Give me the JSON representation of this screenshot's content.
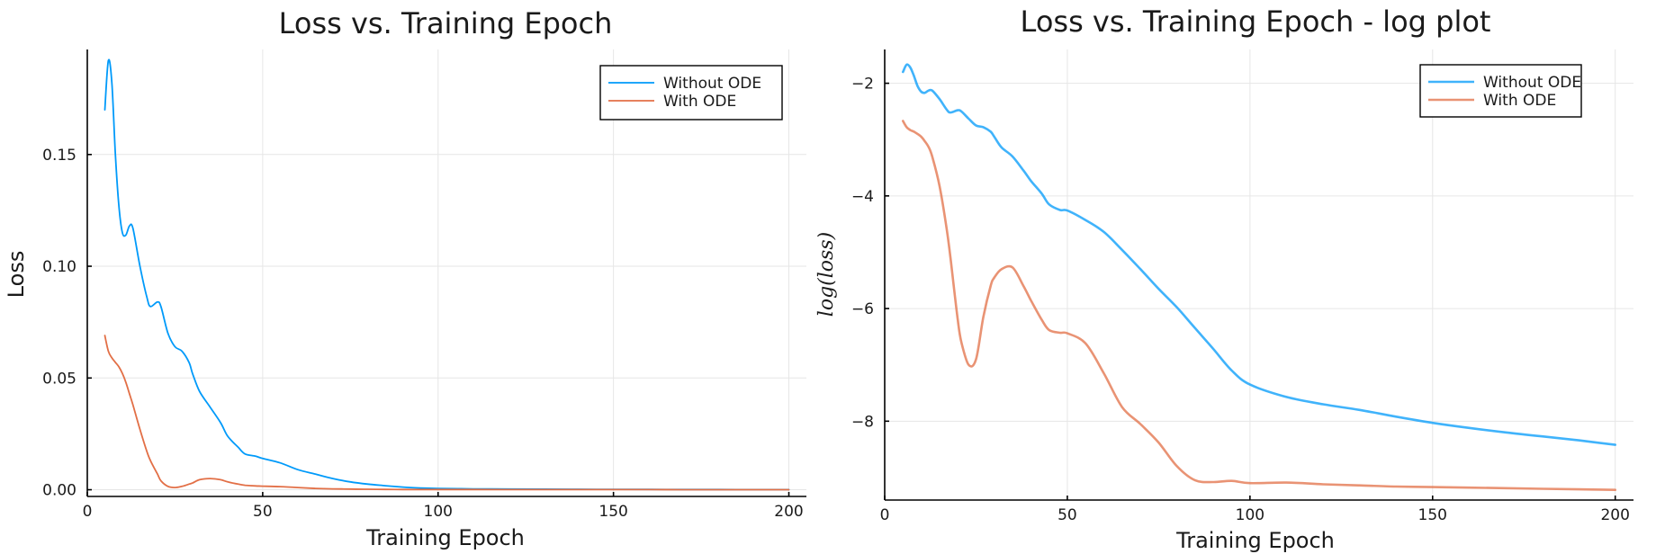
{
  "chart_data": [
    {
      "type": "line",
      "title": "Loss vs. Training Epoch",
      "xlabel": "Training Epoch",
      "ylabel": "Loss",
      "ylabel_style": "plain",
      "xlim": [
        0,
        205
      ],
      "ylim": [
        -0.003,
        0.197
      ],
      "xticks": [
        0,
        50,
        100,
        150,
        200
      ],
      "xtick_labels": [
        "0",
        "50",
        "100",
        "150",
        "200"
      ],
      "yticks": [
        0.0,
        0.05,
        0.1,
        0.15
      ],
      "ytick_labels": [
        "0.00",
        "0.05",
        "0.10",
        "0.15"
      ],
      "grid": true,
      "legend_position": "top-right",
      "x": [
        5,
        6,
        7,
        8,
        9,
        10,
        11,
        12,
        13,
        15,
        17,
        18,
        20,
        21,
        23,
        25,
        27,
        29,
        30,
        32,
        35,
        38,
        40,
        43,
        45,
        48,
        50,
        55,
        60,
        65,
        70,
        75,
        80,
        85,
        90,
        95,
        100,
        110,
        120,
        130,
        140,
        150,
        160,
        170,
        180,
        190,
        200
      ],
      "series": [
        {
          "name": "Without ODE",
          "color": "#009AFA",
          "values": [
            0.17,
            0.192,
            0.182,
            0.15,
            0.127,
            0.115,
            0.114,
            0.118,
            0.117,
            0.1,
            0.086,
            0.082,
            0.084,
            0.082,
            0.07,
            0.064,
            0.062,
            0.057,
            0.052,
            0.044,
            0.037,
            0.03,
            0.024,
            0.019,
            0.016,
            0.015,
            0.014,
            0.012,
            0.009,
            0.007,
            0.005,
            0.0035,
            0.0025,
            0.0018,
            0.0012,
            0.0008,
            0.0006,
            0.0004,
            0.0003,
            0.00025,
            0.0002,
            0.00016,
            0.00013,
            0.0001,
            8e-05,
            7e-05,
            6e-05
          ]
        },
        {
          "name": "With ODE",
          "color": "#E26F46",
          "values": [
            0.069,
            0.062,
            0.059,
            0.057,
            0.055,
            0.052,
            0.048,
            0.043,
            0.038,
            0.027,
            0.017,
            0.013,
            0.007,
            0.004,
            0.0015,
            0.001,
            0.0015,
            0.0025,
            0.003,
            0.0045,
            0.005,
            0.0045,
            0.0035,
            0.0025,
            0.002,
            0.0017,
            0.0016,
            0.0014,
            0.001,
            0.0006,
            0.0004,
            0.0003,
            0.0002,
            0.00015,
            0.0001,
            0.0001,
            9e-05,
            8e-05,
            7e-05,
            6e-05,
            5e-05,
            4e-05,
            4e-05,
            3e-05,
            3e-05,
            3e-05,
            3e-05
          ]
        }
      ]
    },
    {
      "type": "line",
      "title": "Loss vs. Training Epoch - log plot",
      "xlabel": "Training Epoch",
      "ylabel": "log(loss)",
      "ylabel_style": "italic",
      "xlim": [
        0,
        205
      ],
      "ylim": [
        -9.4,
        -1.4
      ],
      "xticks": [
        0,
        50,
        100,
        150,
        200
      ],
      "xtick_labels": [
        "0",
        "50",
        "100",
        "150",
        "200"
      ],
      "yticks": [
        -2,
        -4,
        -6,
        -8
      ],
      "ytick_labels": [
        "−2",
        "−4",
        "−6",
        "−8"
      ],
      "grid": true,
      "legend_position": "top-right",
      "x": [
        5,
        6,
        7,
        8,
        9,
        10,
        11,
        12,
        13,
        15,
        17,
        18,
        20,
        21,
        23,
        25,
        27,
        29,
        30,
        32,
        35,
        38,
        40,
        43,
        45,
        48,
        50,
        55,
        60,
        65,
        70,
        75,
        80,
        85,
        90,
        95,
        100,
        110,
        120,
        130,
        140,
        150,
        160,
        170,
        180,
        190,
        200
      ],
      "series": [
        {
          "name": "Without ODE",
          "color": "#009AFA",
          "values": [
            -1.8,
            -1.67,
            -1.72,
            -1.87,
            -2.05,
            -2.15,
            -2.17,
            -2.13,
            -2.13,
            -2.28,
            -2.47,
            -2.52,
            -2.48,
            -2.5,
            -2.63,
            -2.75,
            -2.78,
            -2.86,
            -2.95,
            -3.14,
            -3.3,
            -3.55,
            -3.73,
            -3.96,
            -4.15,
            -4.25,
            -4.26,
            -4.43,
            -4.64,
            -4.96,
            -5.3,
            -5.65,
            -5.98,
            -6.35,
            -6.72,
            -7.1,
            -7.35,
            -7.57,
            -7.7,
            -7.8,
            -7.92,
            -8.03,
            -8.12,
            -8.2,
            -8.27,
            -8.34,
            -8.42
          ]
        },
        {
          "name": "With ODE",
          "color": "#E26F46",
          "values": [
            -2.67,
            -2.78,
            -2.83,
            -2.86,
            -2.9,
            -2.95,
            -3.03,
            -3.13,
            -3.3,
            -3.82,
            -4.6,
            -5.1,
            -6.2,
            -6.6,
            -7.0,
            -6.9,
            -6.15,
            -5.6,
            -5.45,
            -5.3,
            -5.27,
            -5.6,
            -5.85,
            -6.2,
            -6.38,
            -6.43,
            -6.44,
            -6.62,
            -7.15,
            -7.75,
            -8.05,
            -8.38,
            -8.8,
            -9.05,
            -9.08,
            -9.06,
            -9.1,
            -9.09,
            -9.12,
            -9.14,
            -9.16,
            -9.17,
            -9.18,
            -9.19,
            -9.2,
            -9.21,
            -9.22
          ]
        }
      ]
    }
  ]
}
